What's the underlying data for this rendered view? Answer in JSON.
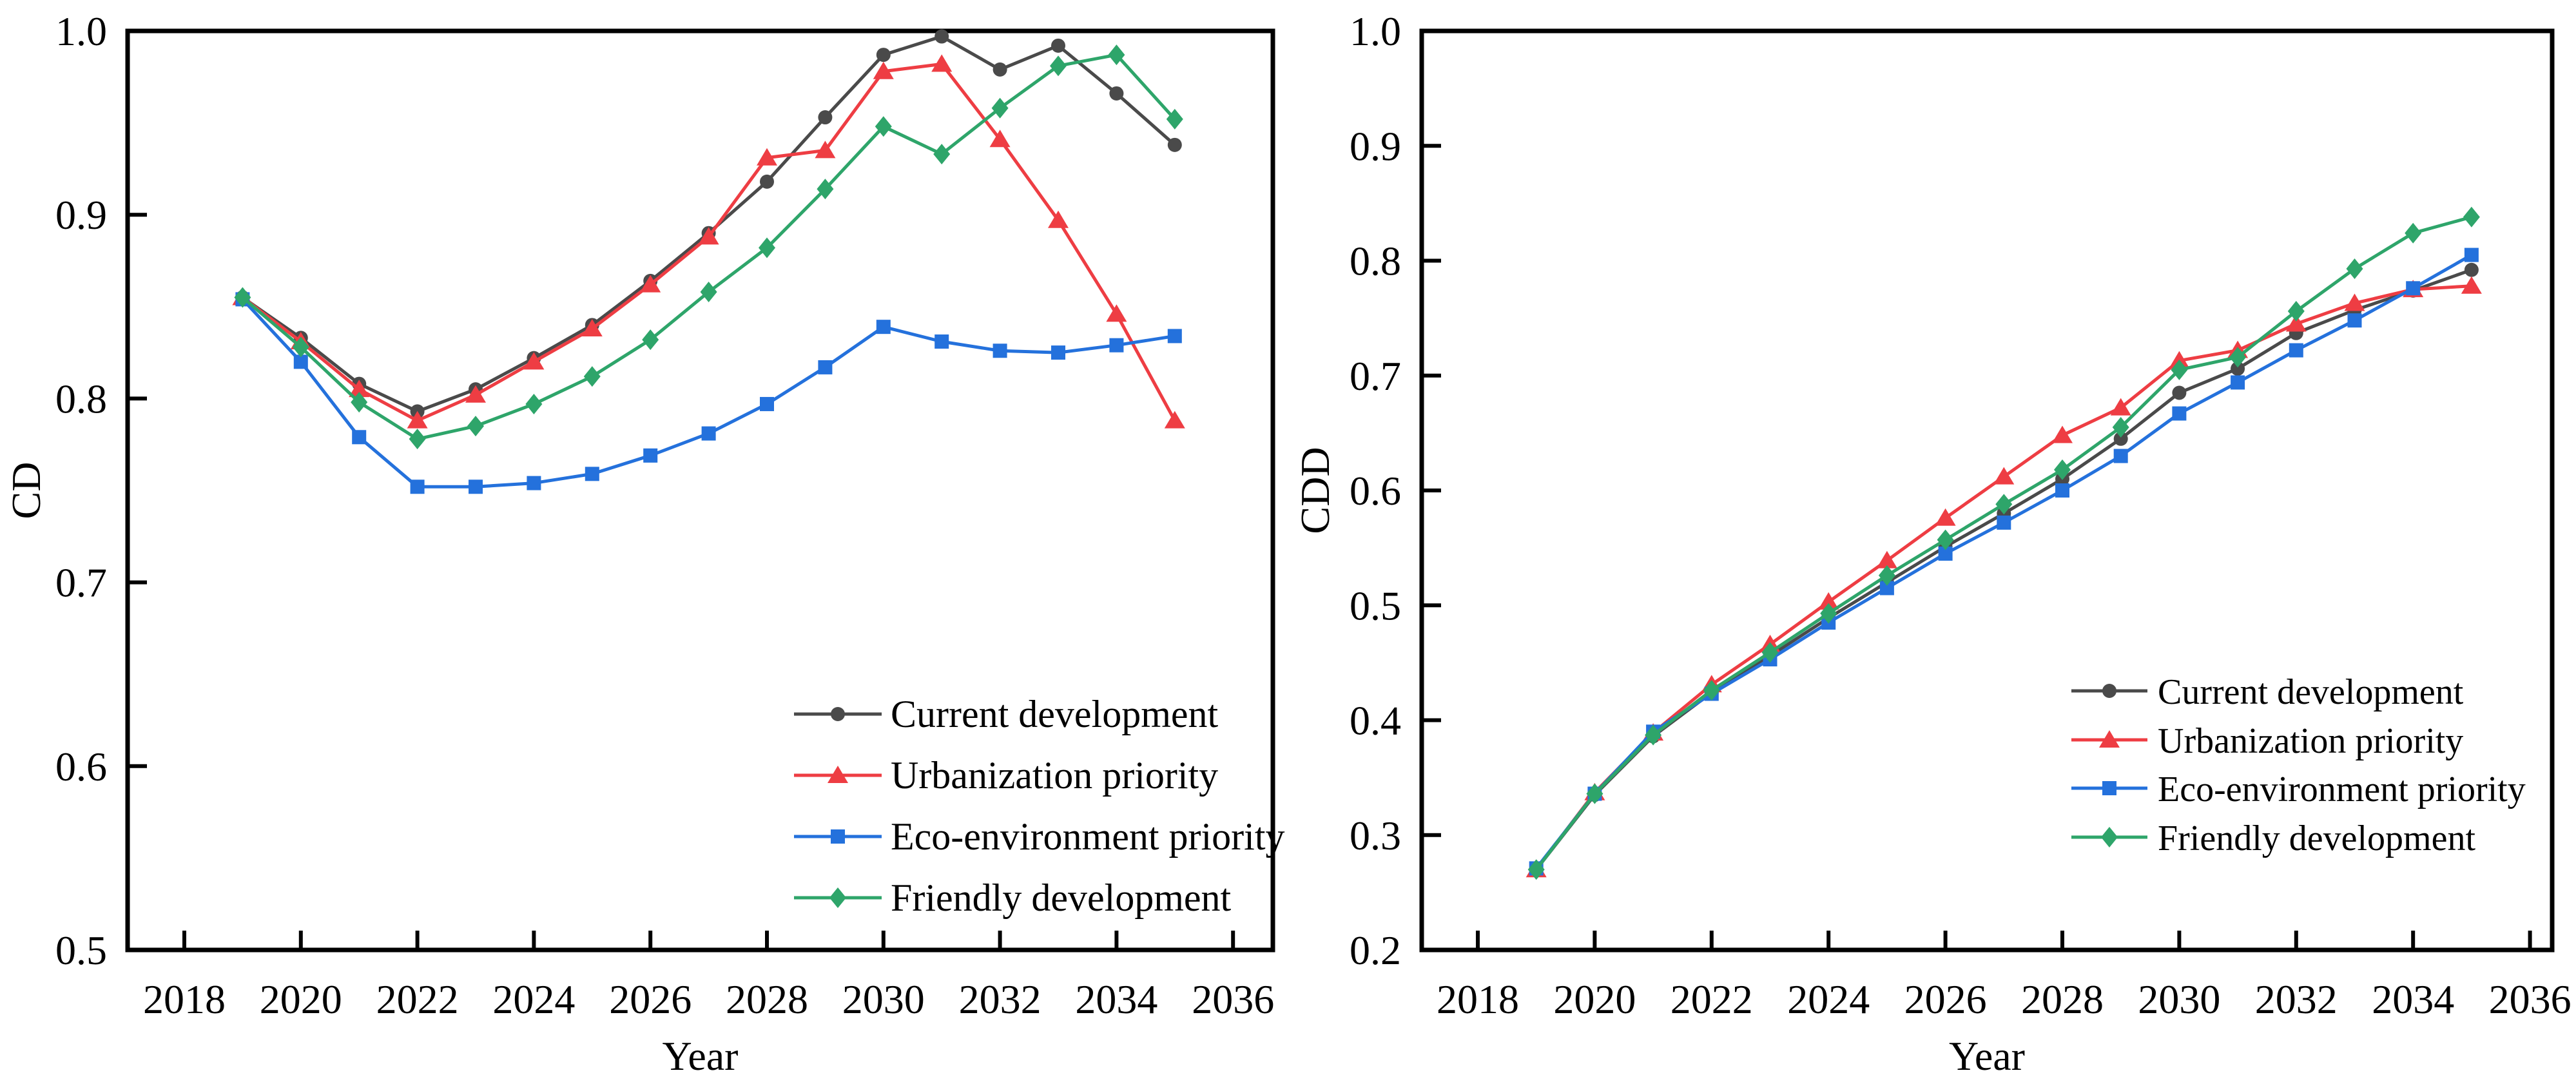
{
  "figure": {
    "background": "#ffffff",
    "frame_color": "#000000",
    "panel_count": 2
  },
  "chart_data": [
    {
      "type": "line",
      "title": "",
      "xlabel": "Year",
      "ylabel": "CD",
      "x": [
        2019,
        2020,
        2021,
        2022,
        2023,
        2024,
        2025,
        2026,
        2027,
        2028,
        2029,
        2030,
        2031,
        2032,
        2033,
        2034,
        2035
      ],
      "xticks": [
        2018,
        2020,
        2022,
        2024,
        2026,
        2028,
        2030,
        2032,
        2034,
        2036
      ],
      "xtick_labels": [
        "2018",
        "2020",
        "2022",
        "2024",
        "2026",
        "2028",
        "2030",
        "2032",
        "2034",
        "2036"
      ],
      "ylim": [
        0.5,
        1.0
      ],
      "yticks": [
        0.5,
        0.6,
        0.7,
        0.8,
        0.9,
        1.0
      ],
      "ytick_labels": [
        "0.5",
        "0.6",
        "0.7",
        "0.8",
        "0.9",
        "1.0"
      ],
      "grid": false,
      "legend_position": "lower-right-inside",
      "series": [
        {
          "name": "Current development",
          "marker": "circle",
          "color": "#4a4a4a",
          "values": [
            0.855,
            0.833,
            0.808,
            0.793,
            0.805,
            0.822,
            0.84,
            0.864,
            0.89,
            0.918,
            0.953,
            0.987,
            0.997,
            0.979,
            0.992,
            0.966,
            0.938
          ]
        },
        {
          "name": "Urbanization priority",
          "marker": "triangle",
          "color": "#ee3d43",
          "values": [
            0.855,
            0.831,
            0.805,
            0.788,
            0.802,
            0.82,
            0.838,
            0.862,
            0.888,
            0.931,
            0.935,
            0.978,
            0.982,
            0.941,
            0.897,
            0.846,
            0.788
          ]
        },
        {
          "name": "Eco-environment priority",
          "marker": "square",
          "color": "#2471dc",
          "values": [
            0.854,
            0.82,
            0.779,
            0.752,
            0.752,
            0.754,
            0.759,
            0.769,
            0.781,
            0.797,
            0.817,
            0.839,
            0.831,
            0.826,
            0.825,
            0.829,
            0.834
          ]
        },
        {
          "name": "Friendly development",
          "marker": "diamond",
          "color": "#2ea56a",
          "values": [
            0.855,
            0.828,
            0.798,
            0.778,
            0.785,
            0.797,
            0.812,
            0.832,
            0.858,
            0.882,
            0.914,
            0.948,
            0.933,
            0.958,
            0.981,
            0.987,
            0.952
          ]
        }
      ]
    },
    {
      "type": "line",
      "title": "",
      "xlabel": "Year",
      "ylabel": "CDD",
      "x": [
        2019,
        2020,
        2021,
        2022,
        2023,
        2024,
        2025,
        2026,
        2027,
        2028,
        2029,
        2030,
        2031,
        2032,
        2033,
        2034,
        2035
      ],
      "xticks": [
        2018,
        2020,
        2022,
        2024,
        2026,
        2028,
        2030,
        2032,
        2034,
        2036
      ],
      "xtick_labels": [
        "2018",
        "2020",
        "2022",
        "2024",
        "2026",
        "2028",
        "2030",
        "2032",
        "2034",
        "2036"
      ],
      "ylim": [
        0.2,
        1.0
      ],
      "yticks": [
        0.2,
        0.3,
        0.4,
        0.5,
        0.6,
        0.7,
        0.8,
        0.9,
        1.0
      ],
      "ytick_labels": [
        "0.2",
        "0.3",
        "0.4",
        "0.5",
        "0.6",
        "0.7",
        "0.8",
        "0.9",
        "1.0"
      ],
      "grid": false,
      "legend_position": "lower-right-inside",
      "series": [
        {
          "name": "Current development",
          "marker": "circle",
          "color": "#4a4a4a",
          "values": [
            0.27,
            0.335,
            0.386,
            0.424,
            0.456,
            0.489,
            0.52,
            0.551,
            0.58,
            0.61,
            0.645,
            0.685,
            0.706,
            0.737,
            0.757,
            0.774,
            0.792
          ]
        },
        {
          "name": "Urbanization priority",
          "marker": "triangle",
          "color": "#ee3d43",
          "values": [
            0.27,
            0.337,
            0.389,
            0.431,
            0.466,
            0.503,
            0.539,
            0.576,
            0.612,
            0.648,
            0.672,
            0.713,
            0.722,
            0.745,
            0.763,
            0.775,
            0.778
          ]
        },
        {
          "name": "Eco-environment priority",
          "marker": "square",
          "color": "#2471dc",
          "values": [
            0.271,
            0.336,
            0.39,
            0.423,
            0.453,
            0.485,
            0.515,
            0.545,
            0.572,
            0.6,
            0.63,
            0.667,
            0.694,
            0.722,
            0.748,
            0.776,
            0.805
          ]
        },
        {
          "name": "Friendly development",
          "marker": "diamond",
          "color": "#2ea56a",
          "values": [
            0.27,
            0.336,
            0.387,
            0.426,
            0.459,
            0.493,
            0.526,
            0.557,
            0.588,
            0.618,
            0.655,
            0.705,
            0.716,
            0.756,
            0.793,
            0.824,
            0.838
          ]
        }
      ]
    }
  ]
}
